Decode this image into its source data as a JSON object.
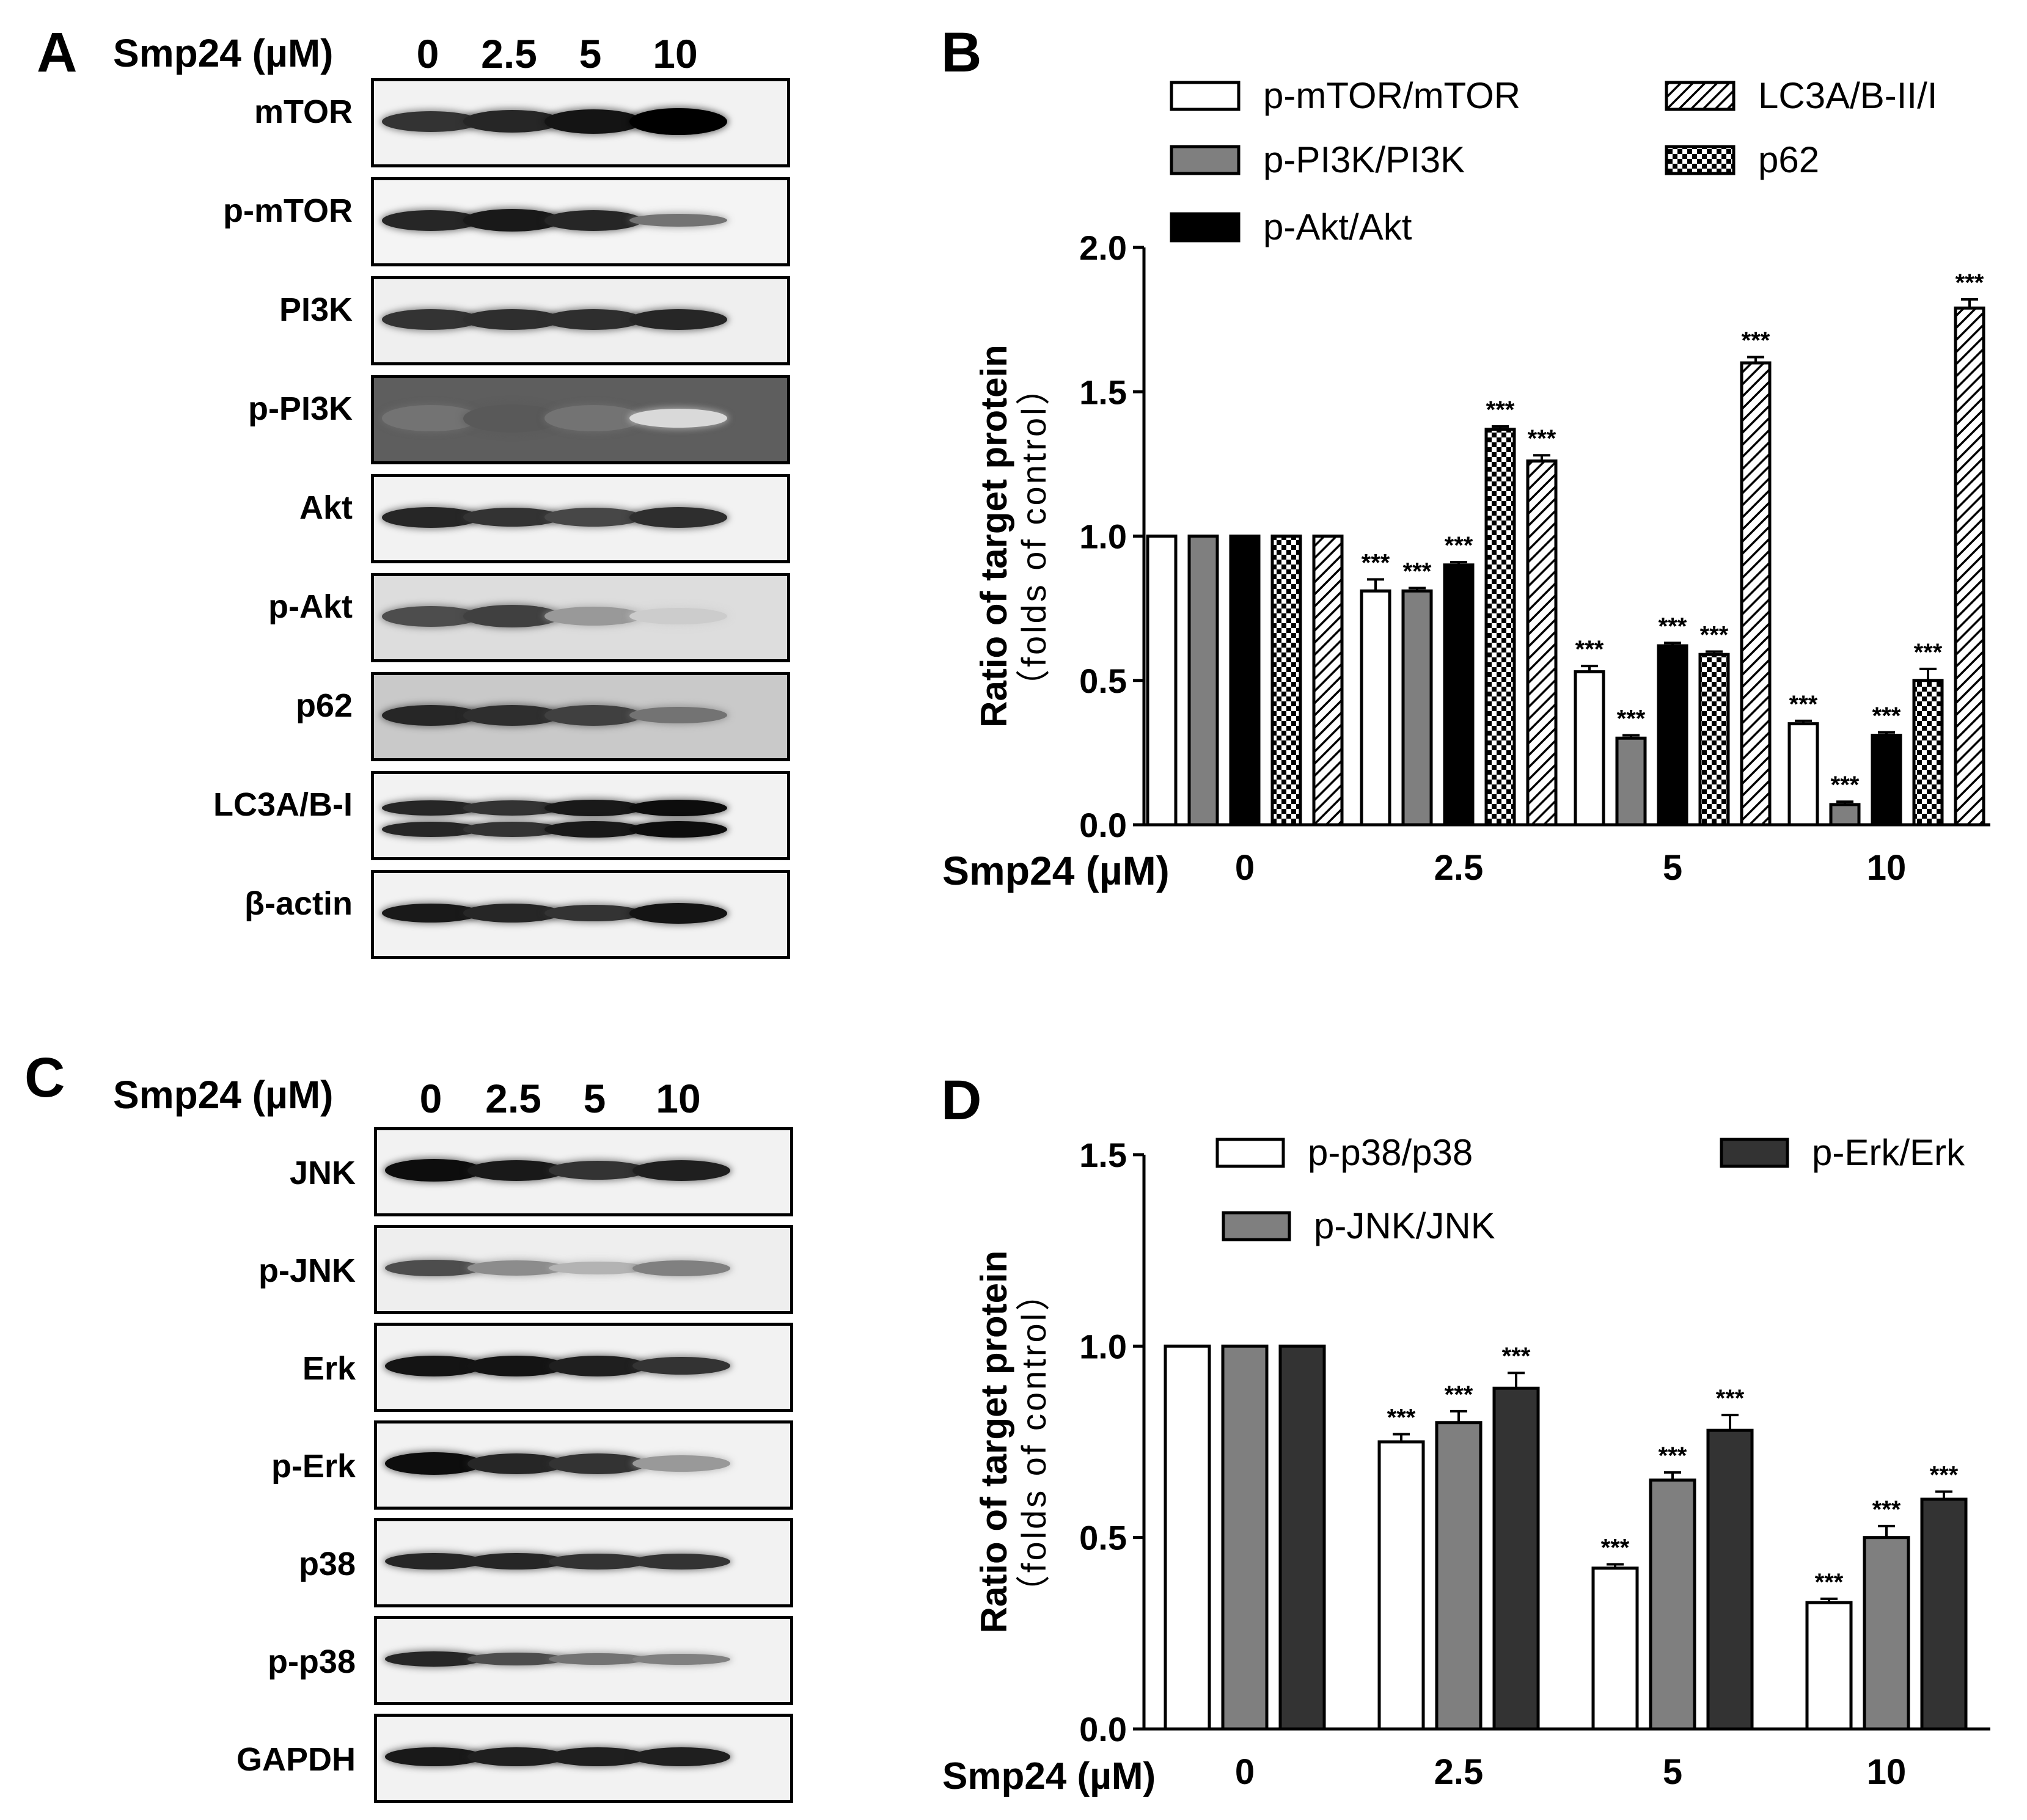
{
  "panels": {
    "A": {
      "letter": "A",
      "header_label": "Smp24 (µM)",
      "doses": [
        "0",
        "2.5",
        "5",
        "10"
      ],
      "blots": [
        {
          "label": "mTOR",
          "intensity": [
            0.8,
            0.85,
            0.92,
            1.0
          ],
          "thickness": [
            0.55,
            0.6,
            0.65,
            0.72
          ],
          "background": "#f2f2f2"
        },
        {
          "label": "p-mTOR",
          "intensity": [
            0.85,
            0.9,
            0.85,
            0.55
          ],
          "thickness": [
            0.55,
            0.6,
            0.55,
            0.35
          ],
          "background": "#f4f4f4"
        },
        {
          "label": "PI3K",
          "intensity": [
            0.8,
            0.82,
            0.82,
            0.85
          ],
          "thickness": [
            0.55,
            0.55,
            0.55,
            0.55
          ],
          "background": "#efefef"
        },
        {
          "label": "p-PI3K",
          "intensity": [
            0.55,
            0.65,
            0.55,
            0.15
          ],
          "thickness": [
            0.7,
            0.75,
            0.7,
            0.5
          ],
          "background": "#5e5e5e"
        },
        {
          "label": "Akt",
          "intensity": [
            0.85,
            0.8,
            0.72,
            0.82
          ],
          "thickness": [
            0.55,
            0.5,
            0.5,
            0.55
          ],
          "background": "#f2f2f2"
        },
        {
          "label": "p-Akt",
          "intensity": [
            0.7,
            0.75,
            0.4,
            0.2
          ],
          "thickness": [
            0.55,
            0.6,
            0.5,
            0.45
          ],
          "background": "#dddddd"
        },
        {
          "label": "p62",
          "intensity": [
            0.85,
            0.82,
            0.75,
            0.55
          ],
          "thickness": [
            0.55,
            0.55,
            0.55,
            0.45
          ],
          "background": "#c9c9c9"
        },
        {
          "label": "LC3A/B-I",
          "intensity": [
            0.85,
            0.8,
            0.9,
            0.95
          ],
          "thickness": [
            0.4,
            0.4,
            0.45,
            0.45
          ],
          "background": "#f2f2f2",
          "double": true
        },
        {
          "label": "β-actin",
          "intensity": [
            0.9,
            0.85,
            0.8,
            0.92
          ],
          "thickness": [
            0.5,
            0.5,
            0.45,
            0.55
          ],
          "background": "#f2f2f2"
        }
      ]
    },
    "B": {
      "letter": "B",
      "ylabel_line1": "Ratio of target protein",
      "ylabel_line2": "（folds of control）",
      "xlabel": "Smp24 (µM)",
      "legend": [
        {
          "name": "p-mTOR/mTOR",
          "pattern": "white"
        },
        {
          "name": "p-PI3K/PI3K",
          "pattern": "gray"
        },
        {
          "name": "p-Akt/Akt",
          "pattern": "black"
        },
        {
          "name": "LC3A/B-II/I",
          "pattern": "hatch"
        },
        {
          "name": "p62",
          "pattern": "checker"
        }
      ]
    },
    "C": {
      "letter": "C",
      "header_label": "Smp24 (µM)",
      "doses": [
        "0",
        "2.5",
        "5",
        "10"
      ],
      "blots": [
        {
          "label": "JNK",
          "intensity": [
            0.95,
            0.9,
            0.8,
            0.88
          ],
          "thickness": [
            0.6,
            0.55,
            0.5,
            0.55
          ],
          "background": "#f2f2f2"
        },
        {
          "label": "p-JNK",
          "intensity": [
            0.7,
            0.45,
            0.3,
            0.5
          ],
          "thickness": [
            0.45,
            0.4,
            0.35,
            0.42
          ],
          "background": "#eeeeee"
        },
        {
          "label": "Erk",
          "intensity": [
            0.92,
            0.92,
            0.88,
            0.8
          ],
          "thickness": [
            0.55,
            0.55,
            0.55,
            0.48
          ],
          "background": "#f2f2f2"
        },
        {
          "label": "p-Erk",
          "intensity": [
            0.95,
            0.85,
            0.8,
            0.4
          ],
          "thickness": [
            0.6,
            0.55,
            0.55,
            0.45
          ],
          "background": "#f2f2f2"
        },
        {
          "label": "p38",
          "intensity": [
            0.85,
            0.85,
            0.8,
            0.8
          ],
          "thickness": [
            0.45,
            0.45,
            0.42,
            0.42
          ],
          "background": "#f2f2f2"
        },
        {
          "label": "p-p38",
          "intensity": [
            0.85,
            0.7,
            0.55,
            0.5
          ],
          "thickness": [
            0.4,
            0.35,
            0.32,
            0.3
          ],
          "background": "#f2f2f2"
        },
        {
          "label": "GAPDH",
          "intensity": [
            0.9,
            0.88,
            0.88,
            0.88
          ],
          "thickness": [
            0.5,
            0.5,
            0.5,
            0.5
          ],
          "background": "#f2f2f2"
        }
      ]
    },
    "D": {
      "letter": "D",
      "ylabel_line1": "Ratio of target protein",
      "ylabel_line2": "（folds of control）",
      "xlabel": "Smp24 (µM)",
      "legend": [
        {
          "name": "p-p38/p38",
          "pattern": "white"
        },
        {
          "name": "p-JNK/JNK",
          "pattern": "gray"
        },
        {
          "name": "p-Erk/Erk",
          "pattern": "dark"
        }
      ]
    }
  },
  "chart_data": [
    {
      "panel": "B",
      "type": "bar",
      "categories": [
        "0",
        "2.5",
        "5",
        "10"
      ],
      "xlabel": "Smp24 (µM)",
      "ylabel": "Ratio of target protein （folds of control）",
      "ylim": [
        0,
        2.0
      ],
      "yticks": [
        "0.0",
        "0.5",
        "1.0",
        "1.5",
        "2.0"
      ],
      "significance_mark": "***",
      "series": [
        {
          "name": "p-mTOR/mTOR",
          "values": [
            1.0,
            0.81,
            0.53,
            0.35
          ],
          "errors": [
            0,
            0.04,
            0.02,
            0.01
          ],
          "marked": [
            false,
            true,
            true,
            true
          ]
        },
        {
          "name": "p-PI3K/PI3K",
          "values": [
            1.0,
            0.81,
            0.3,
            0.07
          ],
          "errors": [
            0,
            0.01,
            0.01,
            0.01
          ],
          "marked": [
            false,
            true,
            true,
            true
          ]
        },
        {
          "name": "p-Akt/Akt",
          "values": [
            1.0,
            0.9,
            0.62,
            0.31
          ],
          "errors": [
            0,
            0.01,
            0.01,
            0.01
          ],
          "marked": [
            false,
            true,
            true,
            true
          ]
        },
        {
          "name": "p62",
          "values": [
            1.0,
            1.37,
            0.59,
            0.5
          ],
          "errors": [
            0,
            0.01,
            0.01,
            0.04
          ],
          "marked": [
            false,
            true,
            true,
            true
          ]
        },
        {
          "name": "LC3A/B-II/I",
          "values": [
            1.0,
            1.26,
            1.6,
            1.79
          ],
          "errors": [
            0,
            0.02,
            0.02,
            0.03
          ],
          "marked": [
            false,
            true,
            true,
            true
          ]
        }
      ]
    },
    {
      "panel": "D",
      "type": "bar",
      "categories": [
        "0",
        "2.5",
        "5",
        "10"
      ],
      "xlabel": "Smp24 (µM)",
      "ylabel": "Ratio of target protein （folds of control）",
      "ylim": [
        0,
        1.5
      ],
      "yticks": [
        "0.0",
        "0.5",
        "1.0",
        "1.5"
      ],
      "significance_mark": "***",
      "series": [
        {
          "name": "p-p38/p38",
          "values": [
            1.0,
            0.75,
            0.42,
            0.33
          ],
          "errors": [
            0,
            0.02,
            0.01,
            0.01
          ],
          "marked": [
            false,
            true,
            true,
            true
          ]
        },
        {
          "name": "p-JNK/JNK",
          "values": [
            1.0,
            0.8,
            0.65,
            0.5
          ],
          "errors": [
            0,
            0.03,
            0.02,
            0.03
          ],
          "marked": [
            false,
            true,
            true,
            true
          ]
        },
        {
          "name": "p-Erk/Erk",
          "values": [
            1.0,
            0.89,
            0.78,
            0.6
          ],
          "errors": [
            0,
            0.04,
            0.04,
            0.02
          ],
          "marked": [
            false,
            true,
            true,
            true
          ]
        }
      ]
    }
  ]
}
